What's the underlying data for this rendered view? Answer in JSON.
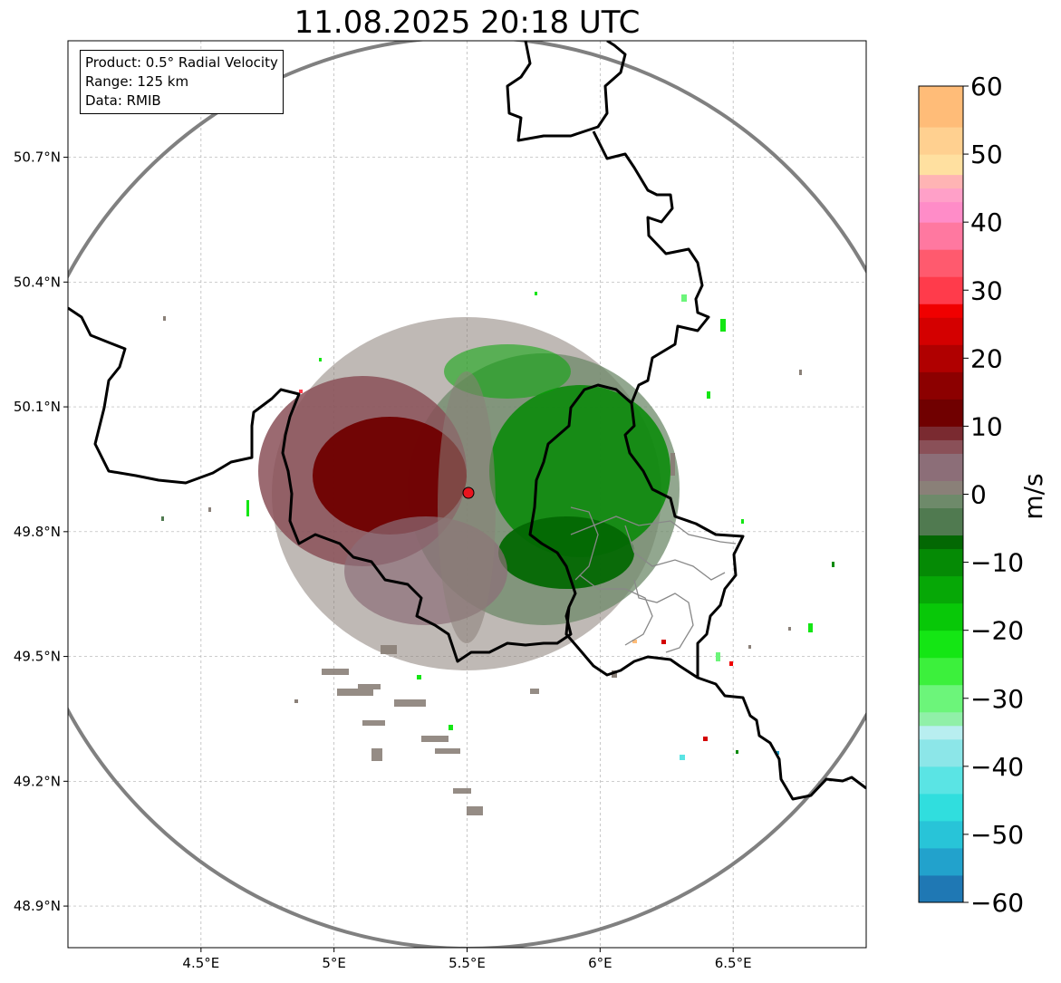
{
  "title": "11.08.2025 20:18 UTC",
  "info": {
    "product": "Product: 0.5° Radial Velocity",
    "range": "Range: 125 km",
    "source": "Data: RMIB"
  },
  "map": {
    "lon_range": [
      4.0,
      7.0
    ],
    "lat_range": [
      48.8,
      50.98
    ],
    "radar_site": {
      "lon": 5.505,
      "lat": 49.914
    },
    "range_ring_km": 125,
    "lon_ticks": [
      {
        "value": 4.5,
        "label": "4.5°E"
      },
      {
        "value": 5.0,
        "label": "5°E"
      },
      {
        "value": 5.5,
        "label": "5.5°E"
      },
      {
        "value": 6.0,
        "label": "6°E"
      },
      {
        "value": 6.5,
        "label": "6.5°E"
      }
    ],
    "lat_ticks": [
      {
        "value": 50.7,
        "label": "50.7°N"
      },
      {
        "value": 50.4,
        "label": "50.4°N"
      },
      {
        "value": 50.1,
        "label": "50.1°N"
      },
      {
        "value": 49.8,
        "label": "49.8°N"
      },
      {
        "value": 49.5,
        "label": "49.5°N"
      },
      {
        "value": 49.2,
        "label": "49.2°N"
      },
      {
        "value": 48.9,
        "label": "48.9°N"
      }
    ],
    "colors": {
      "border": "#000000",
      "region_border": "#888888",
      "ring": "#808080",
      "grid": "#b0b0b0",
      "site": "#e8141e"
    }
  },
  "colorbar": {
    "unit": "m/s",
    "min": -60,
    "max": 60,
    "ticks": [
      {
        "value": 60,
        "label": "60"
      },
      {
        "value": 50,
        "label": "50"
      },
      {
        "value": 40,
        "label": "40"
      },
      {
        "value": 30,
        "label": "30"
      },
      {
        "value": 20,
        "label": "20"
      },
      {
        "value": 10,
        "label": "10"
      },
      {
        "value": 0,
        "label": "0"
      },
      {
        "value": -10,
        "label": "−10"
      },
      {
        "value": -20,
        "label": "−20"
      },
      {
        "value": -30,
        "label": "−30"
      },
      {
        "value": -40,
        "label": "−40"
      },
      {
        "value": -50,
        "label": "−50"
      },
      {
        "value": -60,
        "label": "−60"
      }
    ],
    "stops": [
      {
        "v": -60,
        "c": "#1f78b4"
      },
      {
        "v": -56,
        "c": "#22a2cc"
      },
      {
        "v": -52,
        "c": "#28c4d8"
      },
      {
        "v": -48,
        "c": "#30dede"
      },
      {
        "v": -44,
        "c": "#5ae4e4"
      },
      {
        "v": -40,
        "c": "#8ce6e8"
      },
      {
        "v": -36,
        "c": "#b8eef0"
      },
      {
        "v": -34,
        "c": "#90f0a8"
      },
      {
        "v": -32,
        "c": "#6cf57a"
      },
      {
        "v": -28,
        "c": "#3cf03c"
      },
      {
        "v": -24,
        "c": "#14e614"
      },
      {
        "v": -20,
        "c": "#08c808"
      },
      {
        "v": -16,
        "c": "#06a806"
      },
      {
        "v": -12,
        "c": "#058a05"
      },
      {
        "v": -8,
        "c": "#036803"
      },
      {
        "v": -6,
        "c": "#507a50"
      },
      {
        "v": -2,
        "c": "#6e8a6a"
      },
      {
        "v": 0,
        "c": "#8a8078"
      },
      {
        "v": 2,
        "c": "#8c6e78"
      },
      {
        "v": 6,
        "c": "#8a5058"
      },
      {
        "v": 8,
        "c": "#7a2a30"
      },
      {
        "v": 10,
        "c": "#700000"
      },
      {
        "v": 14,
        "c": "#8c0000"
      },
      {
        "v": 18,
        "c": "#b00000"
      },
      {
        "v": 22,
        "c": "#d40000"
      },
      {
        "v": 26,
        "c": "#f00000"
      },
      {
        "v": 28,
        "c": "#ff3b4b"
      },
      {
        "v": 32,
        "c": "#ff5a6e"
      },
      {
        "v": 36,
        "c": "#ff78a0"
      },
      {
        "v": 40,
        "c": "#ff8cc8"
      },
      {
        "v": 43,
        "c": "#ffa0c8"
      },
      {
        "v": 45,
        "c": "#ffb4b4"
      },
      {
        "v": 47,
        "c": "#ffe0a0"
      },
      {
        "v": 50,
        "c": "#ffd090"
      },
      {
        "v": 54,
        "c": "#ffbc78"
      },
      {
        "v": 60,
        "c": "#ff9e58"
      }
    ]
  }
}
